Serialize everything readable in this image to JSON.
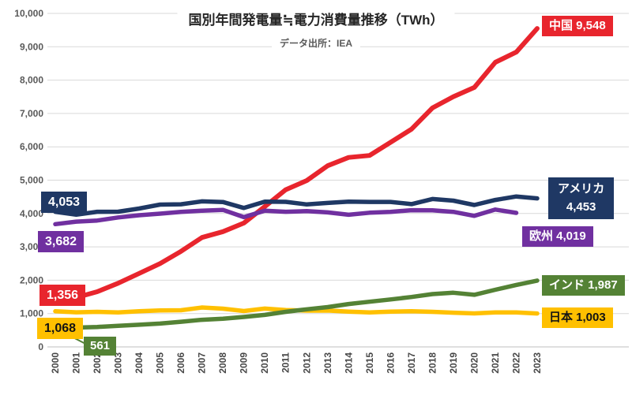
{
  "header": {
    "title": "国別年間発電量≒電力消費量推移（TWh）",
    "subtitle": "データ出所：IEA"
  },
  "chart_data": {
    "type": "line",
    "title": "国別年間発電量≒電力消費量推移（TWh）",
    "subtitle": "データ出所：IEA",
    "xlabel": "",
    "ylabel": "",
    "ylim": [
      0,
      10000
    ],
    "grid": "horizontal",
    "legend_position": "line-end-badges",
    "x": [
      2000,
      2001,
      2002,
      2003,
      2004,
      2005,
      2006,
      2007,
      2008,
      2009,
      2010,
      2011,
      2012,
      2013,
      2014,
      2015,
      2016,
      2017,
      2018,
      2019,
      2020,
      2021,
      2022,
      2023
    ],
    "x_tick_labels": [
      "2000",
      "2001",
      "2002",
      "2003",
      "2004",
      "2005",
      "2006",
      "2007",
      "2008",
      "2009",
      "2010",
      "2011",
      "2012",
      "2013",
      "2014",
      "2015",
      "2016",
      "2017",
      "2018",
      "2019",
      "2020",
      "2021",
      "2022",
      "2023"
    ],
    "y_ticks": [
      0,
      1000,
      2000,
      3000,
      4000,
      5000,
      6000,
      7000,
      8000,
      9000,
      10000
    ],
    "y_tick_labels": [
      "0",
      "1,000",
      "2,000",
      "3,000",
      "4,000",
      "5,000",
      "6,000",
      "7,000",
      "8,000",
      "9,000",
      "10,000"
    ],
    "series": [
      {
        "name": "中国",
        "color": "#e8252d",
        "width": 6,
        "values": [
          1356,
          1481,
          1654,
          1911,
          2203,
          2500,
          2866,
          3282,
          3457,
          3715,
          4207,
          4713,
          4988,
          5432,
          5680,
          5740,
          6133,
          6529,
          7166,
          7503,
          7779,
          8534,
          8840,
          9548
        ],
        "start_label": "1,356",
        "end_label": "中国 9,548"
      },
      {
        "name": "日本",
        "color": "#ffc000",
        "width": 5.5,
        "values": [
          1068,
          1037,
          1051,
          1036,
          1068,
          1092,
          1100,
          1182,
          1146,
          1075,
          1148,
          1107,
          1088,
          1090,
          1057,
          1035,
          1058,
          1068,
          1051,
          1026,
          1005,
          1032,
          1034,
          1003
        ],
        "start_label": "1,068",
        "end_label": "日本 1,003"
      },
      {
        "name": "インド",
        "color": "#548235",
        "width": 5.5,
        "values": [
          561,
          579,
          597,
          633,
          665,
          699,
          753,
          813,
          843,
          899,
          960,
          1052,
          1128,
          1193,
          1287,
          1354,
          1423,
          1497,
          1583,
          1623,
          1562,
          1715,
          1858,
          1987
        ],
        "start_label": "561",
        "end_label": "インド 1,987"
      },
      {
        "name": "欧州",
        "color": "#7030a0",
        "width": 5.5,
        "values": [
          3682,
          3756,
          3789,
          3882,
          3949,
          3996,
          4049,
          4085,
          4109,
          3891,
          4085,
          4052,
          4070,
          4032,
          3962,
          4023,
          4049,
          4100,
          4095,
          4050,
          3930,
          4119,
          4019,
          null
        ],
        "start_label": "3,682",
        "end_label": "欧州 4,019"
      },
      {
        "name": "アメリカ",
        "color": "#1f3864",
        "width": 5.5,
        "values": [
          4053,
          3965,
          4053,
          4054,
          4148,
          4268,
          4277,
          4364,
          4344,
          4165,
          4354,
          4349,
          4271,
          4317,
          4356,
          4347,
          4347,
          4282,
          4434,
          4385,
          4255,
          4406,
          4510,
          4453
        ],
        "start_label": "4,053",
        "end_label_line1": "アメリカ",
        "end_label_line2": "4,453"
      }
    ],
    "colors": {
      "grid": "#d9d9d9",
      "baseline": "#bfbfbf",
      "y_tick_text": "#595959",
      "x_tick_text": "#474747",
      "title_text": "#262626"
    }
  }
}
